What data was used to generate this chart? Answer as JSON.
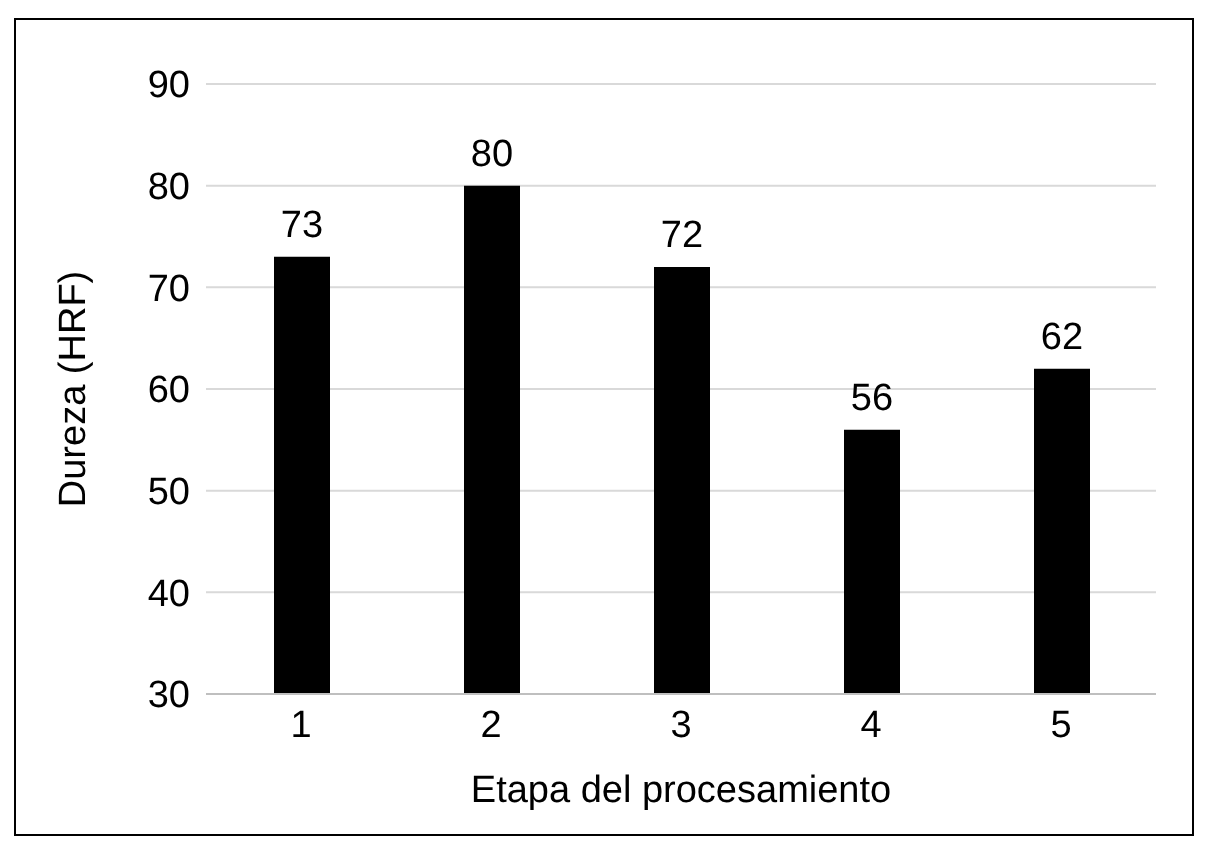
{
  "chart_data": {
    "type": "bar",
    "xlabel": "Etapa del procesamiento",
    "ylabel": "Dureza (HRF)",
    "categories": [
      "1",
      "2",
      "3",
      "4",
      "5"
    ],
    "values": [
      73,
      80,
      72,
      56,
      62
    ],
    "color": "#000000",
    "ylim": [
      30,
      90
    ],
    "yticks": [
      30,
      40,
      50,
      60,
      70,
      80,
      90
    ],
    "grid": "y",
    "data_labels": true
  }
}
